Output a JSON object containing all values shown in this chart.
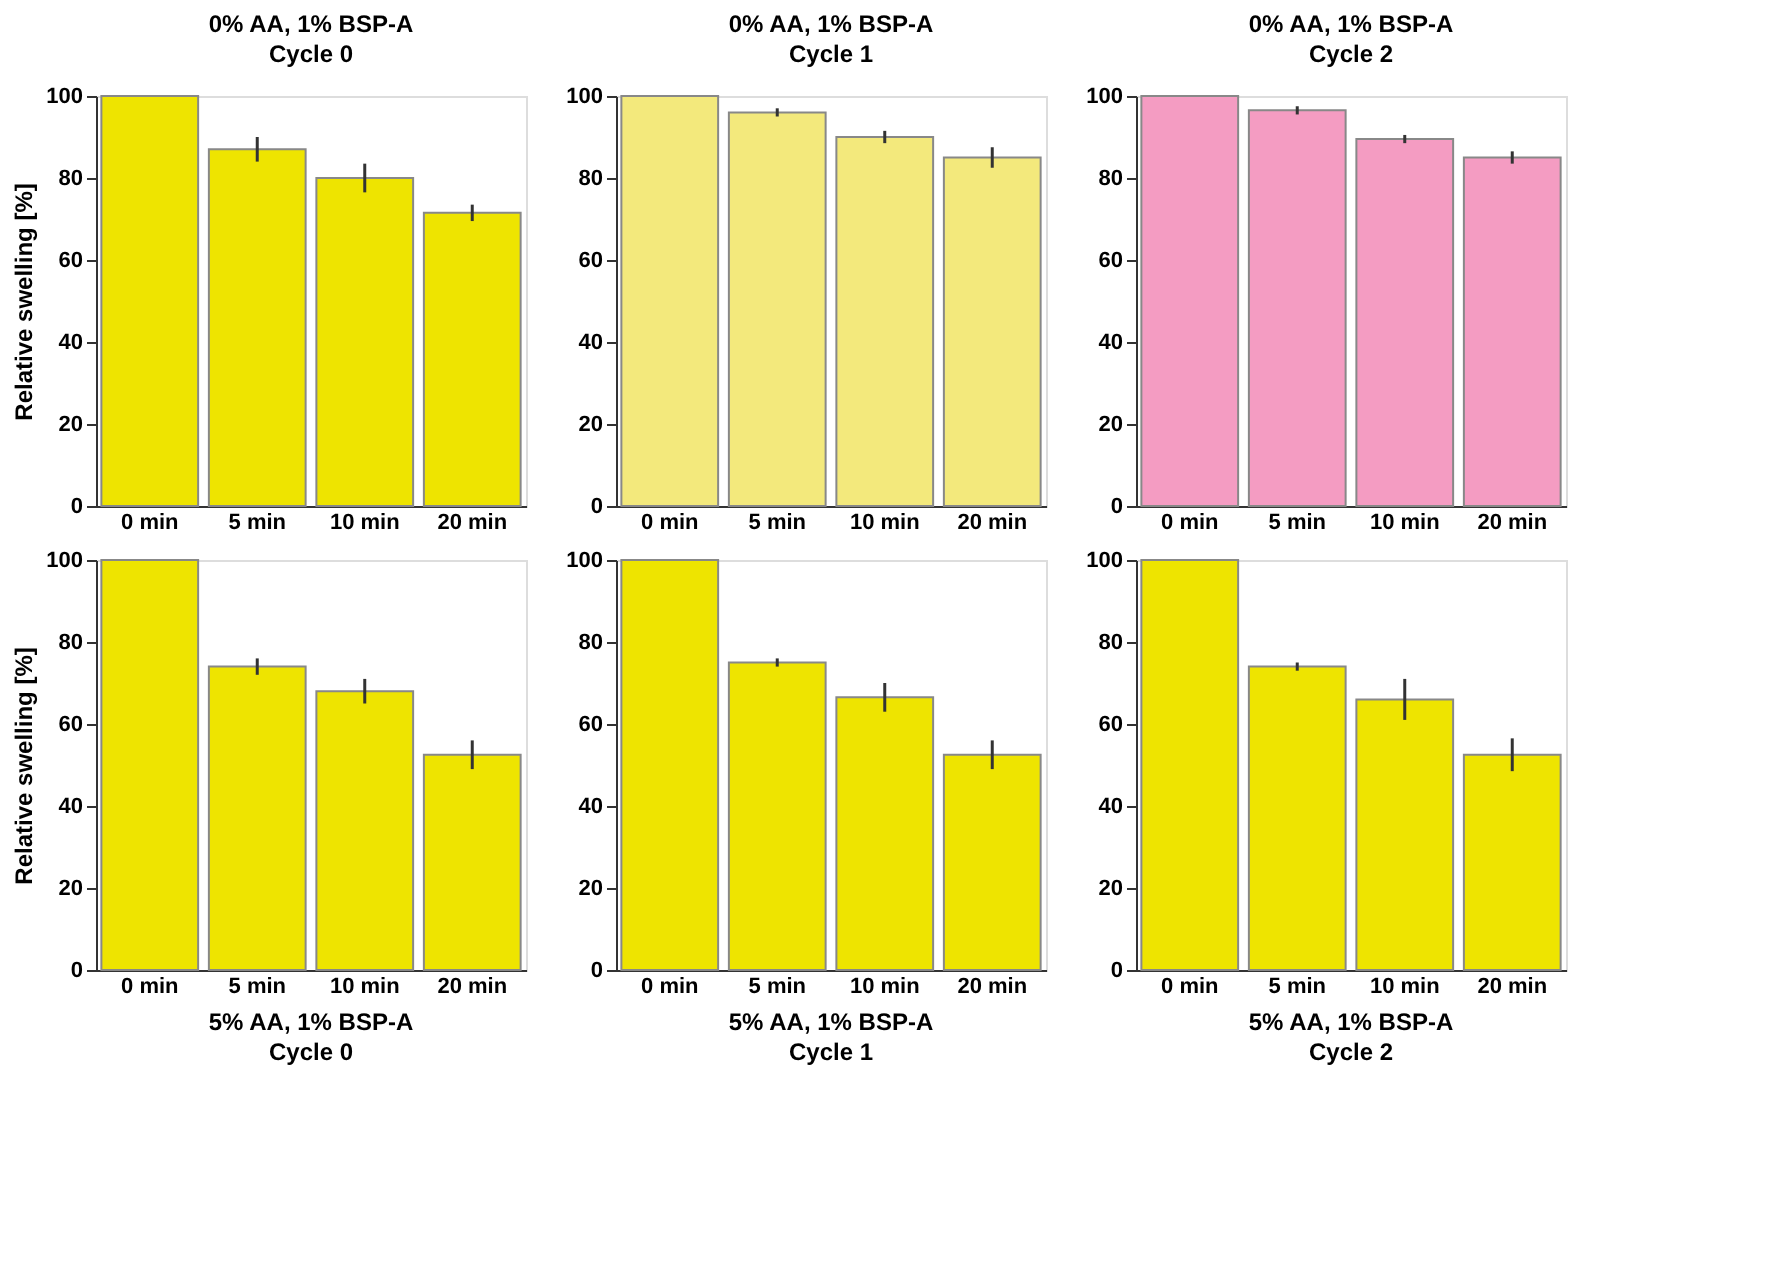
{
  "chart_data": [
    {
      "type": "bar",
      "title": "0% AA, 1% BSP-A",
      "subtitle": "Cycle 0",
      "ylabel": "Relative swelling [%]",
      "categories": [
        "0 min",
        "5 min",
        "10 min",
        "20 min"
      ],
      "values": [
        100,
        87,
        80,
        71.5
      ],
      "errors": [
        null,
        3,
        3.5,
        2
      ],
      "color": "#eee400",
      "ylim": [
        0,
        100
      ],
      "yticks": [
        0,
        20,
        40,
        60,
        80,
        100
      ],
      "grid": false
    },
    {
      "type": "bar",
      "title": "0% AA, 1% BSP-A",
      "subtitle": "Cycle 1",
      "categories": [
        "0 min",
        "5 min",
        "10 min",
        "20 min"
      ],
      "values": [
        100,
        96,
        90,
        85
      ],
      "errors": [
        null,
        1,
        1.5,
        2.5
      ],
      "color": "#f3e97c",
      "ylim": [
        0,
        100
      ],
      "yticks": [
        0,
        20,
        40,
        60,
        80,
        100
      ],
      "grid": false
    },
    {
      "type": "bar",
      "title": "0% AA, 1% BSP-A",
      "subtitle": "Cycle 2",
      "categories": [
        "0 min",
        "5 min",
        "10 min",
        "20 min"
      ],
      "values": [
        100,
        96.5,
        89.5,
        85
      ],
      "errors": [
        null,
        1,
        1,
        1.5
      ],
      "color": "#f49cc2",
      "ylim": [
        0,
        100
      ],
      "yticks": [
        0,
        20,
        40,
        60,
        80,
        100
      ],
      "grid": false
    },
    {
      "type": "bar",
      "title": "5% AA, 1% BSP-A",
      "subtitle": "Cycle 0",
      "ylabel": "Relative swelling [%]",
      "categories": [
        "0 min",
        "5 min",
        "10 min",
        "20 min"
      ],
      "values": [
        100,
        74,
        68,
        52.5
      ],
      "errors": [
        null,
        2,
        3,
        3.5
      ],
      "color": "#eee400",
      "ylim": [
        0,
        100
      ],
      "yticks": [
        0,
        20,
        40,
        60,
        80,
        100
      ],
      "grid": false
    },
    {
      "type": "bar",
      "title": "5% AA, 1% BSP-A",
      "subtitle": "Cycle 1",
      "categories": [
        "0 min",
        "5 min",
        "10 min",
        "20 min"
      ],
      "values": [
        100,
        75,
        66.5,
        52.5
      ],
      "errors": [
        null,
        1,
        3.5,
        3.5
      ],
      "color": "#eee400",
      "ylim": [
        0,
        100
      ],
      "yticks": [
        0,
        20,
        40,
        60,
        80,
        100
      ],
      "grid": false
    },
    {
      "type": "bar",
      "title": "5% AA, 1% BSP-A",
      "subtitle": "Cycle 2",
      "categories": [
        "0 min",
        "5 min",
        "10 min",
        "20 min"
      ],
      "values": [
        100,
        74,
        66,
        52.5
      ],
      "errors": [
        null,
        1,
        5,
        4
      ],
      "color": "#eee400",
      "ylim": [
        0,
        100
      ],
      "yticks": [
        0,
        20,
        40,
        60,
        80,
        100
      ],
      "grid": false
    }
  ]
}
